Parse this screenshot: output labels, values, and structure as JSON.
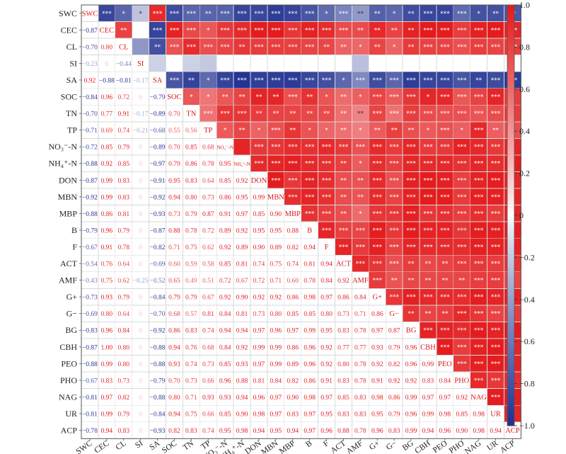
{
  "chart_data": {
    "type": "heatmap",
    "variables": [
      "SWC",
      "CEC",
      "CL",
      "SI",
      "SA",
      "SOC",
      "TN",
      "TP",
      "NO₃⁻-N",
      "NH₄⁺-N",
      "DON",
      "MBN",
      "MBP",
      "B",
      "F",
      "ACT",
      "AMF",
      "G+",
      "G−",
      "BG",
      "CBH",
      "PEO",
      "PHO",
      "NAG",
      "UR",
      "ACP"
    ],
    "lower_matrix": [
      [],
      [
        -0.87
      ],
      [
        -0.7,
        0.8
      ],
      [
        -0.23,
        0,
        -0.44
      ],
      [
        0.92,
        -0.88,
        -0.81,
        -0.17
      ],
      [
        -0.84,
        0.96,
        0.72,
        0,
        -0.79
      ],
      [
        -0.7,
        0.77,
        0.91,
        -0.17,
        -0.89,
        0.7
      ],
      [
        -0.71,
        0.69,
        0.74,
        -0.21,
        -0.68,
        0.55,
        0.56
      ],
      [
        -0.72,
        0.85,
        0.79,
        0,
        -0.89,
        0.7,
        0.85,
        0.68
      ],
      [
        -0.88,
        0.92,
        0.85,
        0,
        -0.97,
        0.79,
        0.86,
        0.78,
        0.95
      ],
      [
        -0.87,
        0.99,
        0.83,
        0,
        -0.91,
        0.95,
        0.83,
        0.64,
        0.85,
        0.92
      ],
      [
        -0.92,
        0.99,
        0.83,
        0,
        -0.92,
        0.94,
        0.8,
        0.73,
        0.86,
        0.95,
        0.99
      ],
      [
        -0.88,
        0.86,
        0.81,
        0,
        -0.93,
        0.73,
        0.79,
        0.87,
        0.91,
        0.97,
        0.85,
        0.9
      ],
      [
        -0.79,
        0.96,
        0.79,
        0,
        -0.87,
        0.88,
        0.78,
        0.72,
        0.89,
        0.92,
        0.95,
        0.95,
        0.88
      ],
      [
        -0.67,
        0.91,
        0.78,
        0,
        -0.82,
        0.71,
        0.75,
        0.62,
        0.92,
        0.89,
        0.9,
        0.89,
        0.82,
        0.94
      ],
      [
        -0.54,
        0.76,
        0.64,
        0,
        -0.69,
        0.6,
        0.59,
        0.58,
        0.85,
        0.81,
        0.74,
        0.75,
        0.74,
        0.81,
        0.94
      ],
      [
        -0.43,
        0.75,
        0.62,
        -0.25,
        -0.52,
        0.65,
        0.49,
        0.51,
        0.72,
        0.67,
        0.72,
        0.71,
        0.6,
        0.78,
        0.84,
        0.92
      ],
      [
        -0.73,
        0.93,
        0.79,
        0,
        -0.84,
        0.79,
        0.79,
        0.67,
        0.92,
        0.9,
        0.92,
        0.92,
        0.86,
        0.98,
        0.97,
        0.86,
        0.84
      ],
      [
        -0.69,
        0.8,
        0.64,
        0,
        -0.7,
        0.68,
        0.57,
        0.81,
        0.84,
        0.81,
        0.73,
        0.8,
        0.85,
        0.85,
        0.8,
        0.73,
        0.71,
        0.86
      ],
      [
        -0.83,
        0.96,
        0.84,
        0,
        -0.92,
        0.86,
        0.83,
        0.74,
        0.94,
        0.94,
        0.97,
        0.96,
        0.97,
        0.99,
        0.95,
        0.83,
        0.78,
        0.97,
        0.87
      ],
      [
        -0.87,
        1.0,
        0.8,
        0,
        -0.88,
        0.94,
        0.76,
        0.68,
        0.84,
        0.92,
        0.99,
        0.99,
        0.86,
        0.96,
        0.92,
        0.77,
        0.77,
        0.93,
        0.79,
        0.96
      ],
      [
        -0.88,
        0.99,
        0.8,
        0,
        -0.88,
        0.93,
        0.74,
        0.73,
        0.85,
        0.93,
        0.97,
        0.99,
        0.89,
        0.96,
        0.92,
        0.8,
        0.78,
        0.92,
        0.82,
        0.96,
        0.99
      ],
      [
        -0.67,
        0.83,
        0.73,
        0,
        -0.79,
        0.7,
        0.73,
        0.66,
        0.96,
        0.88,
        0.81,
        0.84,
        0.82,
        0.86,
        0.91,
        0.83,
        0.78,
        0.91,
        0.92,
        0.92,
        0.83,
        0.84
      ],
      [
        -0.81,
        0.97,
        0.82,
        0,
        -0.88,
        0.8,
        0.71,
        0.93,
        0.93,
        0.94,
        0.96,
        0.97,
        0.9,
        0.98,
        0.97,
        0.85,
        0.83,
        0.98,
        0.86,
        0.99,
        0.97,
        0.97,
        0.92
      ],
      [
        -0.81,
        0.99,
        0.79,
        0,
        -0.84,
        0.94,
        0.75,
        0.66,
        0.85,
        0.9,
        0.98,
        0.97,
        0.83,
        0.97,
        0.95,
        0.83,
        0.83,
        0.95,
        0.79,
        0.96,
        0.99,
        0.98,
        0.85,
        0.98
      ],
      [
        -0.78,
        0.94,
        0.83,
        0,
        -0.93,
        0.82,
        0.83,
        0.74,
        0.95,
        0.98,
        0.94,
        0.95,
        0.94,
        0.97,
        0.96,
        0.88,
        0.78,
        0.96,
        0.83,
        0.99,
        0.94,
        0.96,
        0.9,
        0.98,
        0.94
      ]
    ],
    "upper_matrix": [
      [
        "***",
        "*",
        "*",
        "***",
        "***",
        "***",
        "**",
        "***",
        "***",
        "***",
        "***",
        "***",
        "***",
        "*",
        "***",
        "**",
        "**",
        "*",
        "**",
        "***",
        "***",
        "***",
        "*",
        "**",
        "**"
      ],
      [
        "**",
        "",
        "***",
        "***",
        "***",
        "*",
        "***",
        "***",
        "***",
        "***",
        "***",
        "***",
        "***",
        "***",
        "**",
        "**",
        "**",
        "**",
        "***",
        "***",
        "***",
        "***",
        "***",
        "***"
      ],
      [
        "",
        "**",
        "***",
        "***",
        "***",
        "***",
        "**",
        "***",
        "***",
        "***",
        "***",
        "**",
        "**",
        "*",
        "**",
        "*",
        "**",
        "***",
        "***",
        "***",
        "***",
        "***",
        "***"
      ],
      [
        "",
        "",
        "",
        "",
        "",
        "",
        "",
        "",
        "",
        "",
        "",
        "",
        "",
        "",
        "",
        "",
        "",
        "",
        "",
        "",
        ""
      ],
      [
        "***",
        "**",
        "*",
        "***",
        "***",
        "***",
        "***",
        "***",
        "***",
        "***",
        "*",
        "***",
        "***",
        "***",
        "***",
        "***",
        "***",
        "***",
        "**",
        "***",
        "***"
      ],
      [
        "*",
        "*",
        "**",
        "**",
        "**",
        "**",
        "***",
        "**",
        "*",
        "**",
        "*",
        "***",
        "***",
        "***",
        "*",
        "***",
        "***",
        "***",
        "***"
      ],
      [
        "***",
        "***",
        "***",
        "**",
        "**",
        "**",
        "**",
        "**",
        "**",
        "**",
        "***",
        "***",
        "***",
        "***",
        "***",
        "***",
        "***",
        "***"
      ],
      [
        "*",
        "**",
        "*",
        "***",
        "**",
        "*",
        "*",
        "**",
        "*",
        "**",
        "**",
        "**",
        "*",
        "***",
        "*",
        "***",
        "**"
      ],
      [
        "",
        "***",
        "***",
        "***",
        "***",
        "***",
        "***",
        "***",
        "***",
        "***",
        "***",
        "***",
        "***",
        "***",
        "***",
        "***"
      ],
      [
        "***",
        "***",
        "***",
        "***",
        "***",
        "**",
        "*",
        "***",
        "***",
        "***",
        "***",
        "***",
        "***",
        "***",
        "***"
      ],
      [
        "***",
        "***",
        "***",
        "***",
        "**",
        "**",
        "***",
        "***",
        "***",
        "***",
        "***",
        "***",
        "***",
        "***"
      ],
      [
        "***",
        "***",
        "***",
        "**",
        "**",
        "***",
        "***",
        "***",
        "***",
        "***",
        "***",
        "***",
        "***"
      ],
      [
        "***",
        "***",
        "**",
        "*",
        "***",
        "***",
        "***",
        "***",
        "***",
        "***",
        "***",
        "***"
      ],
      [
        "***",
        "***",
        "***",
        "***",
        "***",
        "***",
        "***",
        "***",
        "***",
        "***",
        "***"
      ],
      [
        "***",
        "***",
        "***",
        "***",
        "***",
        "***",
        "***",
        "***",
        "***",
        "***"
      ],
      [
        "***",
        "***",
        "***",
        "**",
        "**",
        "**",
        "***",
        "***",
        "***"
      ],
      [
        "***",
        "**",
        "**",
        "**",
        "**",
        "**",
        "***",
        "***"
      ],
      [
        "***",
        "***",
        "***",
        "***",
        "***",
        "***",
        "***"
      ],
      [
        "**",
        "**",
        "**",
        "***",
        "***",
        "***"
      ],
      [
        "***",
        "***",
        "***",
        "***",
        "***"
      ],
      [
        "***",
        "***",
        "***",
        "***"
      ],
      [
        "***",
        "***",
        "***"
      ],
      [
        "***",
        "***"
      ],
      [
        "***"
      ],
      []
    ],
    "colorbar": {
      "ticks": [
        1.0,
        0.8,
        0.6,
        0.4,
        0.2,
        0,
        -0.2,
        -0.4,
        -0.6,
        -0.8,
        -1.0
      ],
      "tick_labels": [
        "1.0",
        "0.8",
        "0.6",
        "0.4",
        "0.2",
        "0",
        "−0.2",
        "−0.4",
        "−0.6",
        "−0.8",
        "−1.0"
      ],
      "range": [
        -1,
        1
      ]
    },
    "colors": {
      "positive": "#e41a1c",
      "negative": "#1f2f8f",
      "neutral": "#ffffff",
      "grid": "#d9d9d9"
    },
    "title": "",
    "xlabel": "",
    "ylabel": "",
    "grid": true,
    "legend": "colorbar-right"
  }
}
